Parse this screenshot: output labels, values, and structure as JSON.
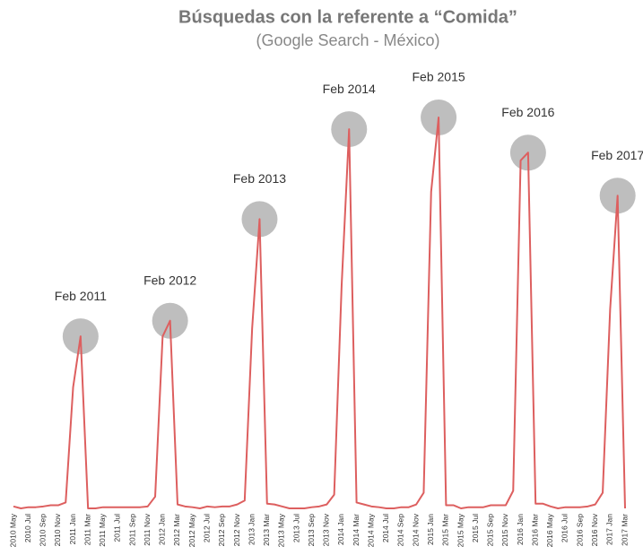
{
  "chart_data": {
    "type": "line",
    "title": "Búsquedas con la referente a “Comida”",
    "subtitle": "(Google Search - México)",
    "categories": [
      "2010 May",
      null,
      "2010 Jul",
      null,
      "2010 Sep",
      null,
      "2010 Nov",
      null,
      "2011 Jan",
      null,
      "2011 Mar",
      null,
      "2011 May",
      null,
      "2011 Jul",
      null,
      "2011 Sep",
      null,
      "2011 Nov",
      null,
      "2012 Jan",
      null,
      "2012 Mar",
      null,
      "2012 May",
      null,
      "2012 Jul",
      null,
      "2012 Sep",
      null,
      "2012 Nov",
      null,
      "2013 Jan",
      null,
      "2013 Mar",
      null,
      "2013 May",
      null,
      "2013 Jul",
      null,
      "2013 Sep",
      null,
      "2013 Nov",
      null,
      "2014 Jan",
      null,
      "2014 Mar",
      null,
      "2014 May",
      null,
      "2014 Jul",
      null,
      "2014 Sep",
      null,
      "2014 Nov",
      null,
      "2015 Jan",
      null,
      "2015 Mar",
      null,
      "2015 May",
      null,
      "2015 Jul",
      null,
      "2015 Sep",
      null,
      "2015 Nov",
      null,
      "2016 Jan",
      null,
      "2016 Mar",
      null,
      "2016 May",
      null,
      "2016 Jul",
      null,
      "2016 Sep",
      null,
      "2016 Nov",
      null,
      "2017 Jan",
      null,
      "2017 Mar"
    ],
    "values": [
      0.5,
      0,
      0.3,
      0.3,
      0.5,
      0.8,
      0.8,
      1.5,
      31,
      44,
      0,
      0,
      0.3,
      0.3,
      0.3,
      0.3,
      0.3,
      0.3,
      0.5,
      3,
      44,
      48,
      1,
      0.5,
      0.3,
      0,
      0.5,
      0.3,
      0.5,
      0.5,
      1,
      2,
      46,
      74,
      1.2,
      1,
      0.5,
      0,
      0,
      0,
      0.3,
      0.5,
      1,
      3.5,
      57,
      97,
      1.5,
      1,
      0.5,
      0.3,
      0,
      0,
      0.3,
      0.3,
      1,
      4,
      81,
      100,
      0.8,
      0.8,
      0,
      0.3,
      0.3,
      0.3,
      0.8,
      0.8,
      0.8,
      4.5,
      89,
      91,
      1.2,
      1.2,
      0.5,
      0,
      0.3,
      0.3,
      0.3,
      0.5,
      1,
      4,
      51,
      80,
      0
    ],
    "color": "#dd5f5f",
    "ylim": [
      0,
      100
    ],
    "annotations": [
      "Feb 2011",
      "Feb 2012",
      "Feb 2013",
      "Feb 2014",
      "Feb 2015",
      "Feb 2016",
      "Feb 2017"
    ]
  }
}
